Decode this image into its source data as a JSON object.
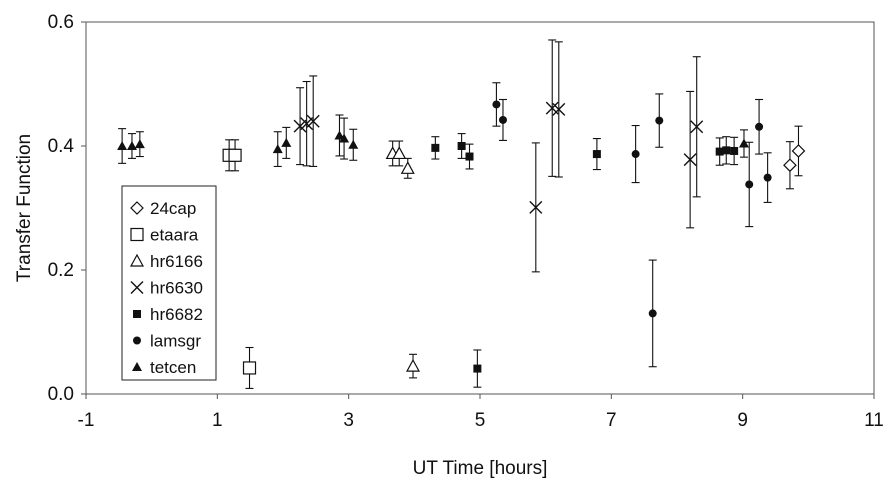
{
  "chart_data": {
    "type": "scatter",
    "title": "",
    "xlabel": "UT Time [hours]",
    "ylabel": "Transfer Function",
    "xlim": [
      -1,
      11
    ],
    "ylim": [
      0,
      0.6
    ],
    "xticks": [
      -1,
      1,
      3,
      5,
      7,
      9,
      11
    ],
    "yticks": [
      0.0,
      0.2,
      0.4,
      0.6
    ],
    "xtick_labels": [
      "-1",
      "1",
      "3",
      "5",
      "7",
      "9",
      "11"
    ],
    "ytick_labels": [
      "0.0",
      "0.2",
      "0.4",
      "0.6"
    ],
    "grid": false,
    "legend_position": "left",
    "series": [
      {
        "name": "24cap",
        "marker": "diamond-open",
        "points": [
          {
            "x": 9.72,
            "y": 0.369,
            "err": 0.038
          },
          {
            "x": 9.85,
            "y": 0.392,
            "err": 0.04
          }
        ]
      },
      {
        "name": "etaara",
        "marker": "square-open",
        "points": [
          {
            "x": 1.18,
            "y": 0.385,
            "err": 0.025
          },
          {
            "x": 1.27,
            "y": 0.385,
            "err": 0.025
          },
          {
            "x": 1.49,
            "y": 0.042,
            "err": 0.033
          }
        ]
      },
      {
        "name": "hr6166",
        "marker": "triangle-open",
        "points": [
          {
            "x": 3.67,
            "y": 0.388,
            "err": 0.02
          },
          {
            "x": 3.77,
            "y": 0.388,
            "err": 0.02
          },
          {
            "x": 3.9,
            "y": 0.364,
            "err": 0.016
          },
          {
            "x": 3.98,
            "y": 0.045,
            "err": 0.019
          }
        ]
      },
      {
        "name": "hr6630",
        "marker": "x",
        "points": [
          {
            "x": 2.26,
            "y": 0.432,
            "err": 0.062
          },
          {
            "x": 2.36,
            "y": 0.436,
            "err": 0.068
          },
          {
            "x": 2.46,
            "y": 0.44,
            "err": 0.073
          },
          {
            "x": 5.85,
            "y": 0.301,
            "err": 0.104
          },
          {
            "x": 6.1,
            "y": 0.461,
            "err": 0.11
          },
          {
            "x": 6.2,
            "y": 0.459,
            "err": 0.109
          },
          {
            "x": 8.2,
            "y": 0.378,
            "err": 0.11
          },
          {
            "x": 8.3,
            "y": 0.431,
            "err": 0.113
          }
        ]
      },
      {
        "name": "hr6682",
        "marker": "square-filled",
        "points": [
          {
            "x": 4.32,
            "y": 0.397,
            "err": 0.018
          },
          {
            "x": 4.72,
            "y": 0.4,
            "err": 0.02
          },
          {
            "x": 4.84,
            "y": 0.383,
            "err": 0.02
          },
          {
            "x": 4.96,
            "y": 0.041,
            "err": 0.03
          },
          {
            "x": 6.78,
            "y": 0.387,
            "err": 0.025
          },
          {
            "x": 8.65,
            "y": 0.391,
            "err": 0.022
          },
          {
            "x": 8.75,
            "y": 0.393,
            "err": 0.022
          },
          {
            "x": 8.87,
            "y": 0.392,
            "err": 0.022
          }
        ]
      },
      {
        "name": "lamsgr",
        "marker": "circle-filled",
        "points": [
          {
            "x": 5.25,
            "y": 0.467,
            "err": 0.035
          },
          {
            "x": 5.35,
            "y": 0.442,
            "err": 0.033
          },
          {
            "x": 7.37,
            "y": 0.387,
            "err": 0.046
          },
          {
            "x": 7.63,
            "y": 0.13,
            "err": 0.086
          },
          {
            "x": 7.73,
            "y": 0.441,
            "err": 0.043
          },
          {
            "x": 9.1,
            "y": 0.338,
            "err": 0.068
          },
          {
            "x": 9.25,
            "y": 0.431,
            "err": 0.044
          },
          {
            "x": 9.38,
            "y": 0.349,
            "err": 0.04
          }
        ]
      },
      {
        "name": "tetcen",
        "marker": "triangle-filled",
        "points": [
          {
            "x": -0.45,
            "y": 0.4,
            "err": 0.028
          },
          {
            "x": -0.3,
            "y": 0.4,
            "err": 0.02
          },
          {
            "x": -0.18,
            "y": 0.403,
            "err": 0.02
          },
          {
            "x": 1.92,
            "y": 0.395,
            "err": 0.028
          },
          {
            "x": 2.05,
            "y": 0.405,
            "err": 0.025
          },
          {
            "x": 2.86,
            "y": 0.417,
            "err": 0.033
          },
          {
            "x": 2.93,
            "y": 0.412,
            "err": 0.033
          },
          {
            "x": 3.07,
            "y": 0.402,
            "err": 0.025
          },
          {
            "x": 9.02,
            "y": 0.404,
            "err": 0.022
          }
        ]
      }
    ]
  }
}
